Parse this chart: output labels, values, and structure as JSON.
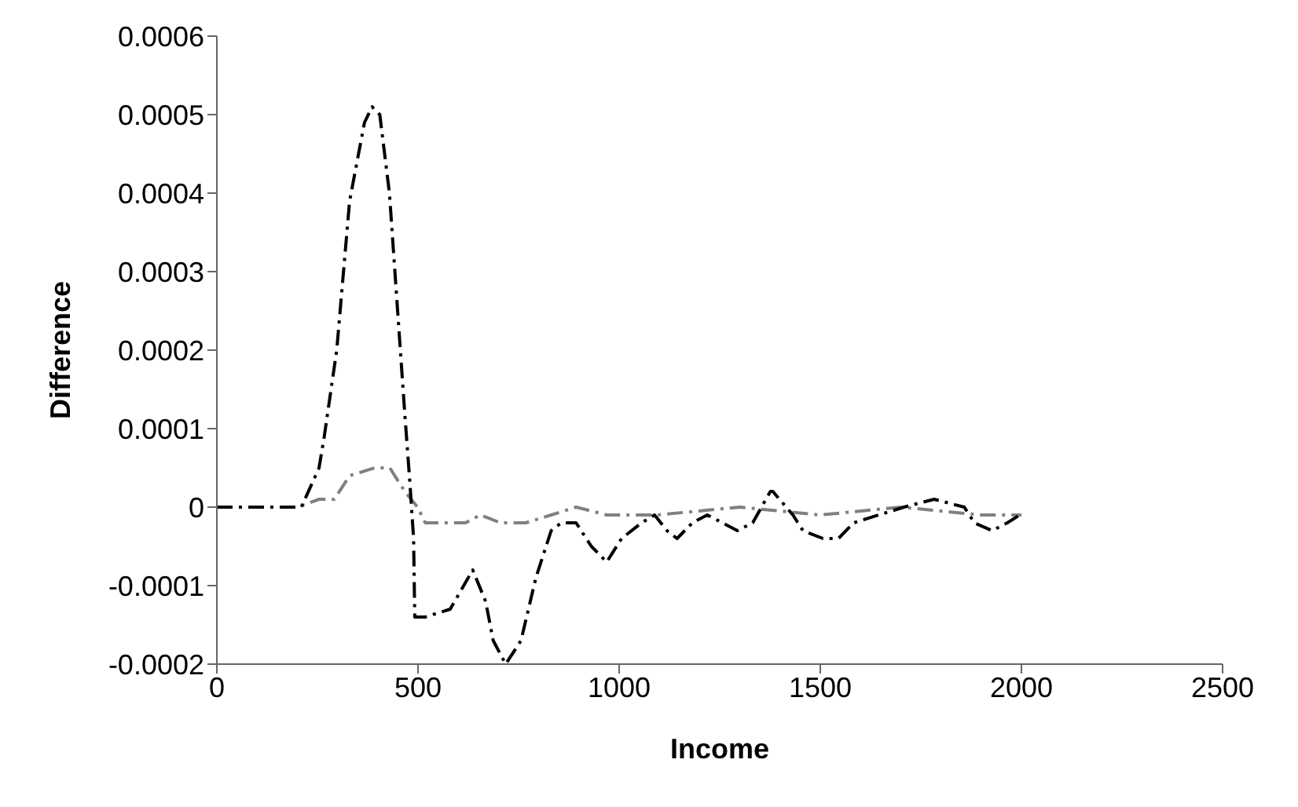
{
  "chart_data": {
    "type": "line",
    "xlabel": "Income",
    "ylabel": "Difference",
    "xlim": [
      0,
      2500
    ],
    "xticks": [
      0,
      500,
      1000,
      1500,
      2000,
      2500
    ],
    "ylim": [
      -0.0002,
      0.0006
    ],
    "yticks": [
      -0.0002,
      -0.0001,
      0,
      0.0001,
      0.0002,
      0.0003,
      0.0004,
      0.0005,
      0.0006
    ],
    "marker": "none",
    "series": [
      {
        "color": "#808080",
        "line_style": "dashed",
        "x": [
          0,
          100,
          200,
          254,
          292,
          330,
          392,
          430,
          467,
          499,
          518,
          618,
          655,
          705,
          768,
          831,
          893,
          969,
          1094,
          1300,
          1500,
          1700,
          1900,
          2000
        ],
        "values": [
          0,
          0,
          0,
          1e-05,
          1e-05,
          4e-05,
          5e-05,
          5e-05,
          2e-05,
          0,
          -2e-05,
          -2e-05,
          -1e-05,
          -2e-05,
          -2e-05,
          -1e-05,
          0,
          -1e-05,
          -1e-05,
          0,
          -1e-05,
          0,
          -1e-05,
          -1e-05
        ]
      },
      {
        "color": "#000000",
        "line_style": "dashed",
        "x": [
          0,
          100,
          210,
          254,
          267,
          298,
          330,
          367,
          386,
          405,
          429,
          448,
          467,
          480,
          489,
          492,
          518,
          580,
          636,
          668,
          687,
          718,
          756,
          793,
          831,
          856,
          893,
          931,
          969,
          1006,
          1056,
          1088,
          1119,
          1144,
          1182,
          1219,
          1257,
          1294,
          1332,
          1376,
          1382,
          1432,
          1457,
          1507,
          1545,
          1583,
          1645,
          1708,
          1783,
          1858,
          1883,
          1927,
          1965,
          1996
        ],
        "values": [
          0,
          0,
          0,
          5e-05,
          9e-05,
          0.0002,
          0.00039,
          0.00049,
          0.00051,
          0.0005,
          0.0004,
          0.00026,
          0.00012,
          3e-05,
          -4e-05,
          -0.00014,
          -0.00014,
          -0.00013,
          -8e-05,
          -0.00012,
          -0.00017,
          -0.0002,
          -0.00017,
          -9e-05,
          -3e-05,
          -2e-05,
          -2e-05,
          -5e-05,
          -7e-05,
          -4e-05,
          -2e-05,
          -1e-05,
          -3e-05,
          -4e-05,
          -2e-05,
          -1e-05,
          -2e-05,
          -3e-05,
          -2e-05,
          2e-05,
          2e-05,
          -1e-05,
          -3e-05,
          -4e-05,
          -4e-05,
          -2e-05,
          -1e-05,
          0,
          1e-05,
          0,
          -2e-05,
          -3e-05,
          -2e-05,
          -1e-05
        ]
      }
    ]
  }
}
